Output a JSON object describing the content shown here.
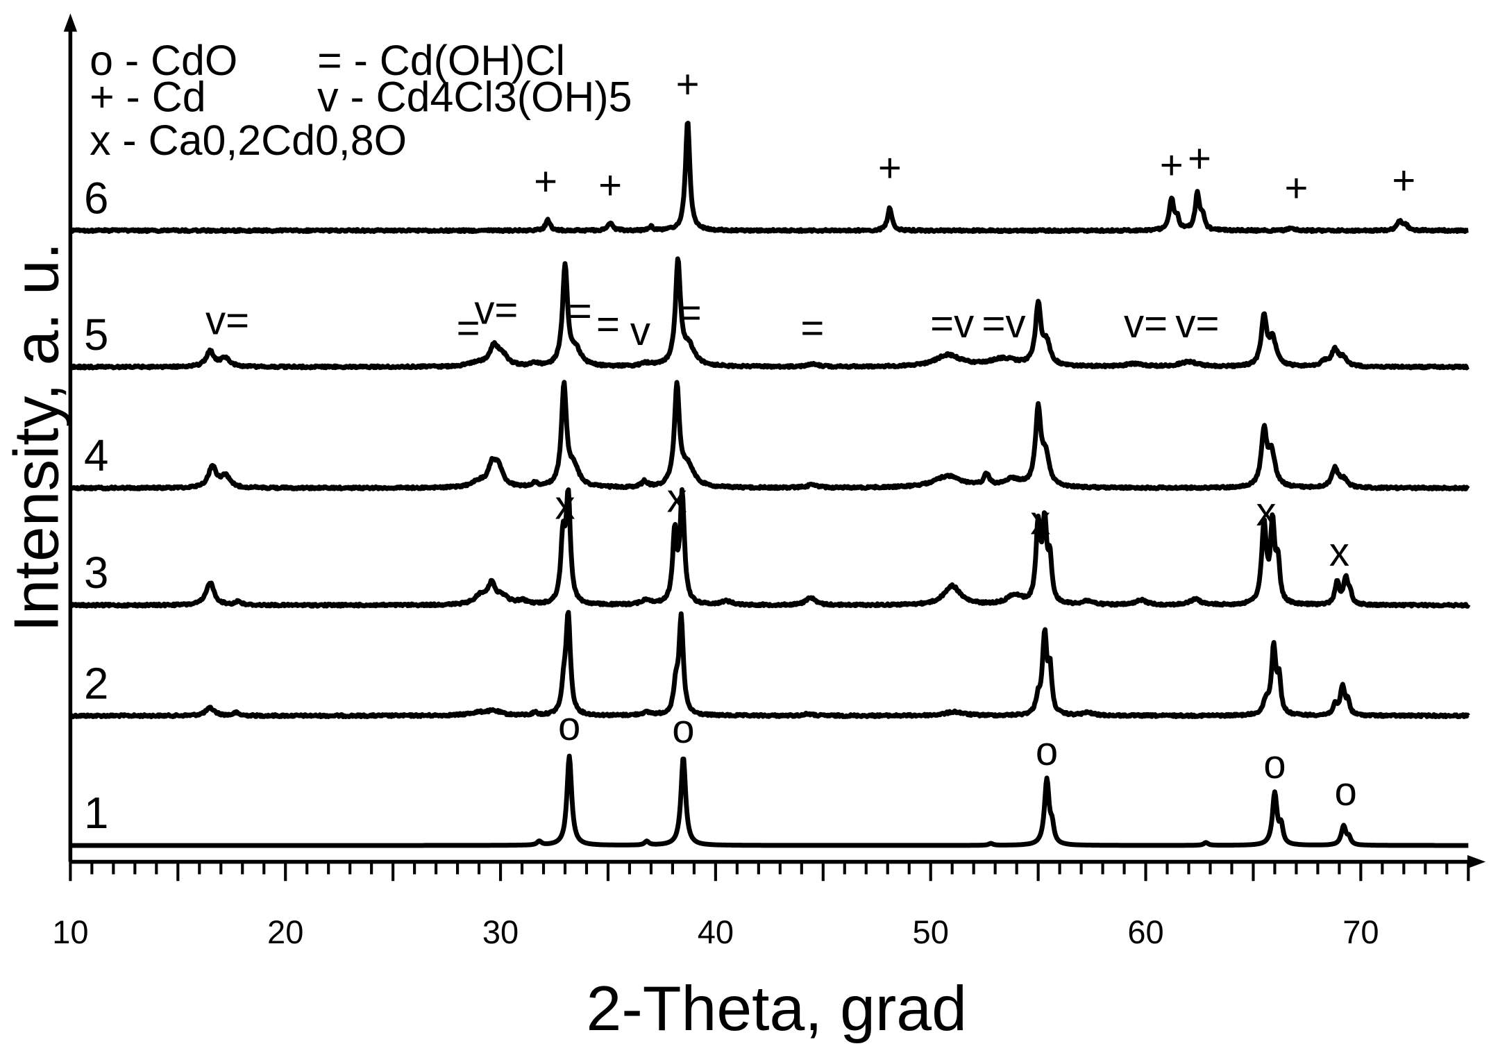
{
  "chart_data": {
    "type": "line",
    "xlabel": "2-Theta, grad",
    "ylabel": "Intensity, a. u.",
    "xlim": [
      10,
      75
    ],
    "xticks": [
      10,
      20,
      30,
      40,
      50,
      60,
      70
    ],
    "minor_tick_step": 1,
    "grid": false,
    "legend": [
      {
        "text": "o - CdO"
      },
      {
        "text": "= - Cd(OH)Cl"
      },
      {
        "text": "+ - Cd"
      },
      {
        "text": "v - Cd4Cl3(OH)5"
      },
      {
        "text": "x - Ca0,2Cd0,8O"
      }
    ],
    "series": [
      {
        "name": "1",
        "baseline": 880,
        "peaks": [
          [
            31.8,
            4,
            0.12
          ],
          [
            33.2,
            93,
            0.13
          ],
          [
            36.8,
            4,
            0.12
          ],
          [
            38.5,
            92,
            0.13
          ],
          [
            52.8,
            2,
            0.12
          ],
          [
            55.4,
            68,
            0.13
          ],
          [
            55.65,
            16,
            0.1
          ],
          [
            62.8,
            3,
            0.12
          ],
          [
            66.0,
            54,
            0.13
          ],
          [
            66.3,
            18,
            0.1
          ],
          [
            69.2,
            20,
            0.13
          ],
          [
            69.45,
            7,
            0.1
          ]
        ],
        "annotations": [
          [
            "o",
            33.2,
            770
          ],
          [
            "o",
            38.5,
            773
          ],
          [
            "o",
            55.4,
            796
          ],
          [
            "o",
            66.0,
            810
          ],
          [
            "o",
            69.3,
            838
          ]
        ]
      },
      {
        "name": "2",
        "baseline": 745,
        "peaks": [
          [
            16.5,
            8,
            0.25
          ],
          [
            17.7,
            3,
            0.15
          ],
          [
            29.0,
            3,
            0.6
          ],
          [
            29.7,
            4,
            0.4
          ],
          [
            31.6,
            3,
            0.12
          ],
          [
            32.95,
            28,
            0.12
          ],
          [
            33.15,
            102,
            0.12
          ],
          [
            36.8,
            3,
            0.3
          ],
          [
            38.15,
            28,
            0.12
          ],
          [
            38.4,
            100,
            0.12
          ],
          [
            44.3,
            2,
            0.2
          ],
          [
            51.1,
            4,
            0.5
          ],
          [
            55.0,
            16,
            0.12
          ],
          [
            55.3,
            82,
            0.12
          ],
          [
            55.55,
            45,
            0.1
          ],
          [
            57.3,
            3,
            0.3
          ],
          [
            65.6,
            14,
            0.15
          ],
          [
            65.95,
            70,
            0.12
          ],
          [
            66.2,
            35,
            0.1
          ],
          [
            68.8,
            10,
            0.12
          ],
          [
            69.15,
            30,
            0.12
          ],
          [
            69.4,
            14,
            0.1
          ]
        ],
        "annotations": []
      },
      {
        "name": "3",
        "baseline": 630,
        "peaks": [
          [
            16.5,
            24,
            0.22
          ],
          [
            17.8,
            4,
            0.15
          ],
          [
            29.1,
            10,
            0.35
          ],
          [
            29.6,
            20,
            0.2
          ],
          [
            30.1,
            8,
            0.3
          ],
          [
            31.0,
            4,
            0.3
          ],
          [
            32.9,
            65,
            0.12
          ],
          [
            33.15,
            110,
            0.12
          ],
          [
            36.8,
            5,
            0.3
          ],
          [
            38.1,
            72,
            0.12
          ],
          [
            38.45,
            112,
            0.12
          ],
          [
            40.5,
            4,
            0.3
          ],
          [
            44.4,
            8,
            0.25
          ],
          [
            51.0,
            20,
            0.45
          ],
          [
            53.9,
            10,
            0.4
          ],
          [
            55.0,
            80,
            0.12
          ],
          [
            55.3,
            80,
            0.12
          ],
          [
            55.55,
            42,
            0.1
          ],
          [
            57.3,
            4,
            0.3
          ],
          [
            59.8,
            5,
            0.3
          ],
          [
            62.3,
            6,
            0.3
          ],
          [
            65.5,
            82,
            0.13
          ],
          [
            65.9,
            82,
            0.12
          ],
          [
            66.15,
            40,
            0.1
          ],
          [
            68.9,
            24,
            0.12
          ],
          [
            69.3,
            26,
            0.12
          ],
          [
            69.5,
            12,
            0.1
          ]
        ],
        "annotations": [
          [
            "x",
            33.0,
            540
          ],
          [
            "x",
            38.2,
            533
          ],
          [
            "x",
            55.1,
            556
          ],
          [
            "x",
            65.6,
            547
          ],
          [
            "x",
            69.0,
            589
          ]
        ]
      },
      {
        "name": "4",
        "baseline": 508,
        "peaks": [
          [
            16.6,
            22,
            0.22
          ],
          [
            17.2,
            12,
            0.25
          ],
          [
            29.0,
            6,
            0.4
          ],
          [
            29.6,
            20,
            0.2
          ],
          [
            29.9,
            20,
            0.25
          ],
          [
            31.6,
            4,
            0.15
          ],
          [
            32.95,
            103,
            0.14
          ],
          [
            33.4,
            20,
            0.3
          ],
          [
            36.7,
            6,
            0.15
          ],
          [
            38.2,
            103,
            0.14
          ],
          [
            38.7,
            22,
            0.35
          ],
          [
            44.5,
            3,
            0.3
          ],
          [
            50.8,
            12,
            0.8
          ],
          [
            52.6,
            12,
            0.15
          ],
          [
            53.8,
            8,
            0.5
          ],
          [
            55.0,
            78,
            0.15
          ],
          [
            55.35,
            30,
            0.2
          ],
          [
            65.5,
            56,
            0.15
          ],
          [
            65.85,
            35,
            0.2
          ],
          [
            68.8,
            20,
            0.18
          ],
          [
            69.2,
            8,
            0.2
          ]
        ],
        "annotations": []
      },
      {
        "name": "5",
        "baseline": 382,
        "peaks": [
          [
            16.5,
            16,
            0.22
          ],
          [
            17.2,
            9,
            0.25
          ],
          [
            28.9,
            4,
            0.4
          ],
          [
            29.7,
            20,
            0.25
          ],
          [
            30.1,
            10,
            0.3
          ],
          [
            31.6,
            3,
            0.2
          ],
          [
            33.0,
            104,
            0.14
          ],
          [
            33.5,
            16,
            0.3
          ],
          [
            36.8,
            3,
            0.3
          ],
          [
            38.25,
            106,
            0.14
          ],
          [
            38.75,
            20,
            0.35
          ],
          [
            44.5,
            3,
            0.3
          ],
          [
            50.8,
            12,
            0.7
          ],
          [
            53.4,
            8,
            0.8
          ],
          [
            55.0,
            62,
            0.15
          ],
          [
            55.4,
            22,
            0.2
          ],
          [
            59.5,
            3,
            0.5
          ],
          [
            62.0,
            5,
            0.5
          ],
          [
            65.5,
            50,
            0.15
          ],
          [
            65.9,
            28,
            0.2
          ],
          [
            68.3,
            5,
            0.2
          ],
          [
            68.8,
            17,
            0.2
          ],
          [
            69.2,
            8,
            0.2
          ]
        ],
        "annotations": [
          [
            "v=",
            17.3,
            348
          ],
          [
            "=",
            28.5,
            356
          ],
          [
            "v=",
            29.8,
            337
          ],
          [
            "=",
            33.7,
            338
          ],
          [
            "=",
            35.0,
            352
          ],
          [
            "v",
            36.5,
            359
          ],
          [
            "=",
            38.8,
            340
          ],
          [
            "=",
            44.5,
            356
          ],
          [
            "=v",
            51.0,
            351
          ],
          [
            "=v",
            53.4,
            351
          ],
          [
            "v=",
            60.0,
            351
          ],
          [
            "v=",
            62.4,
            351
          ]
        ]
      },
      {
        "name": "6",
        "baseline": 240,
        "peaks": [
          [
            32.2,
            11,
            0.13
          ],
          [
            35.1,
            8,
            0.13
          ],
          [
            37.0,
            4,
            0.1
          ],
          [
            38.7,
            115,
            0.12
          ],
          [
            48.1,
            24,
            0.12
          ],
          [
            61.2,
            32,
            0.12
          ],
          [
            61.45,
            12,
            0.12
          ],
          [
            62.4,
            38,
            0.12
          ],
          [
            62.65,
            14,
            0.1
          ],
          [
            66.8,
            3,
            0.15
          ],
          [
            71.8,
            10,
            0.15
          ],
          [
            72.1,
            5,
            0.12
          ]
        ],
        "annotations": [
          [
            "+",
            32.1,
            203
          ],
          [
            "+",
            35.1,
            207
          ],
          [
            "+",
            38.7,
            102
          ],
          [
            "+",
            48.1,
            189
          ],
          [
            "+",
            61.2,
            186
          ],
          [
            "+",
            62.5,
            179
          ],
          [
            "+",
            67.0,
            210
          ],
          [
            "+",
            72.0,
            202
          ]
        ]
      }
    ]
  }
}
